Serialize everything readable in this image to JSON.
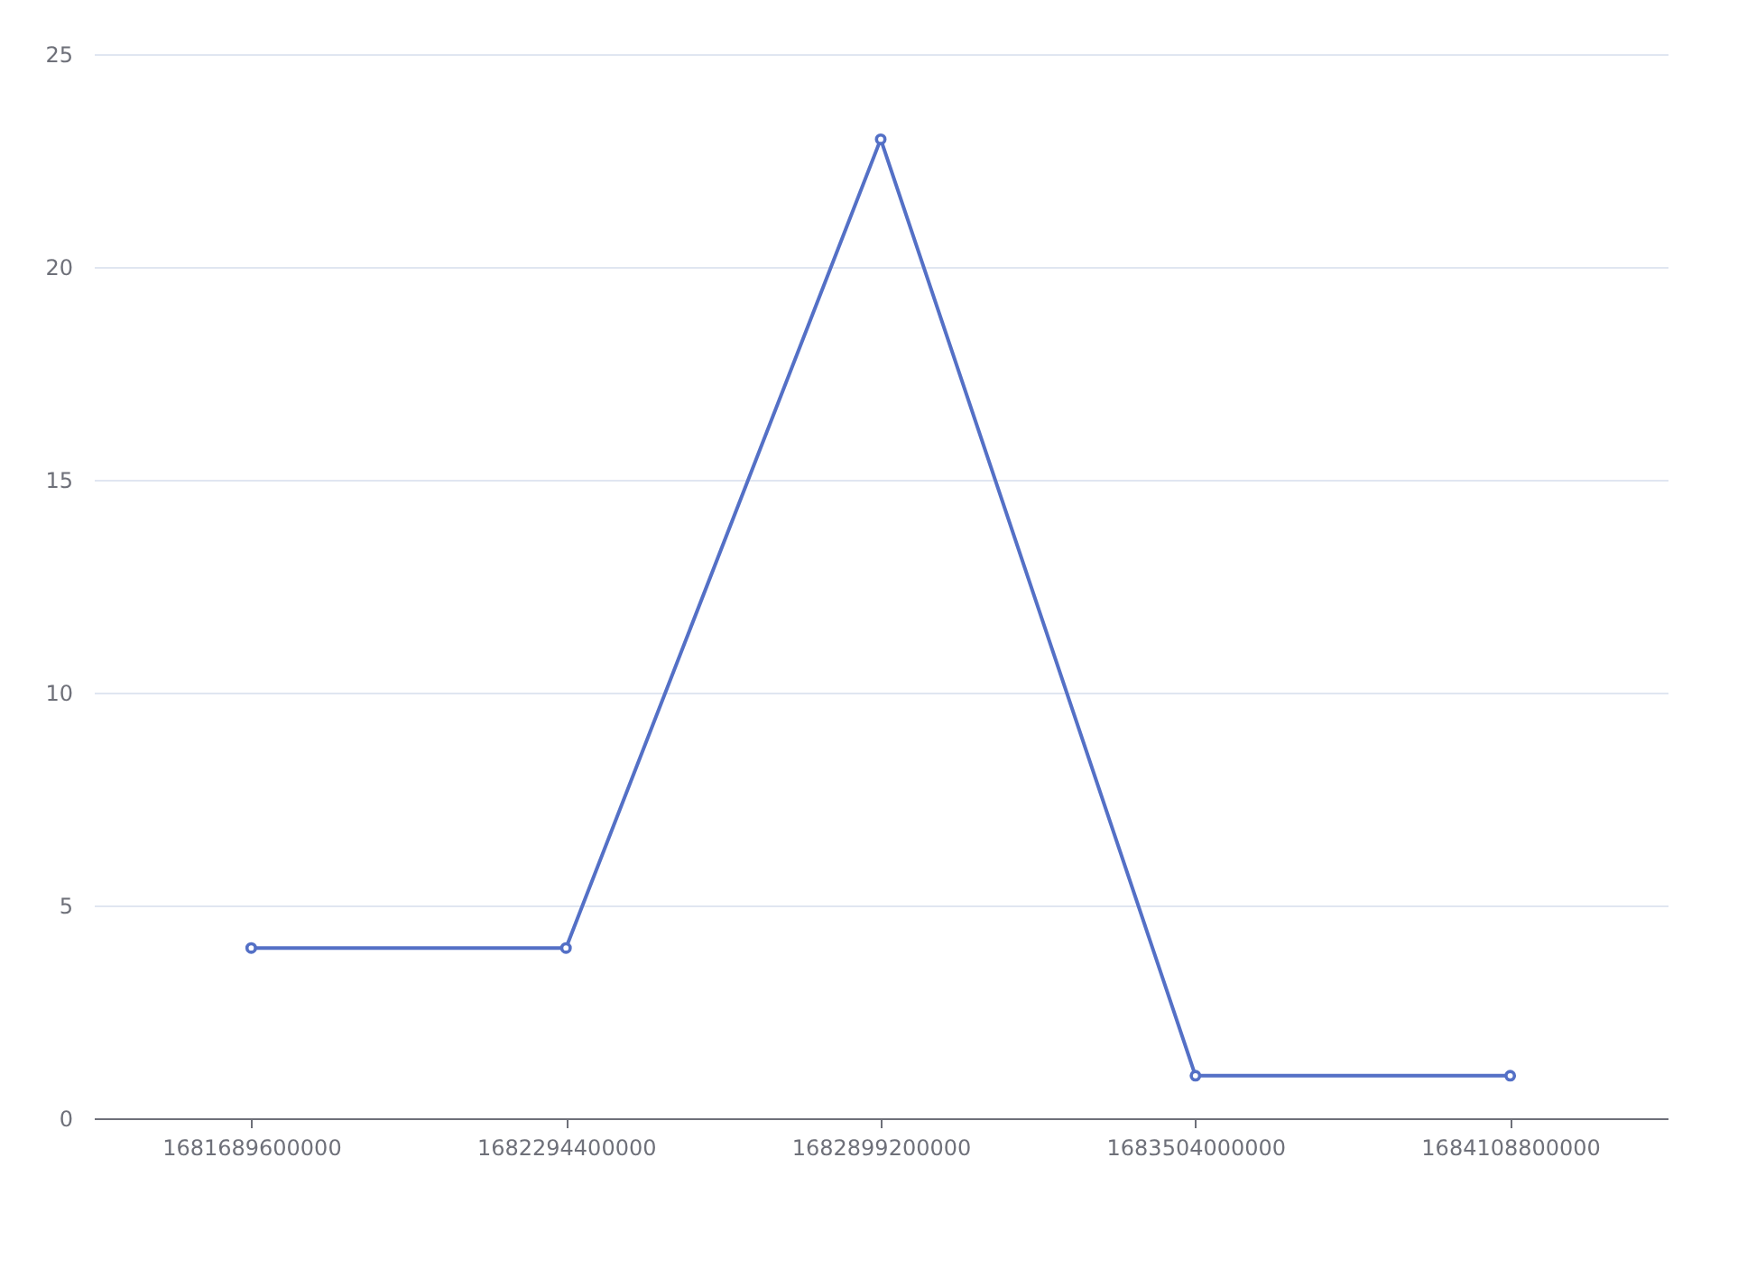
{
  "chart_data": {
    "type": "line",
    "categories": [
      "1681689600000",
      "1682294400000",
      "1682899200000",
      "1683504000000",
      "1684108800000"
    ],
    "series": [
      {
        "color": "#5470c6",
        "values": [
          4,
          4,
          23,
          1,
          1
        ]
      }
    ],
    "ylim": [
      0,
      25
    ],
    "yticks": [
      0,
      5,
      10,
      15,
      20,
      25
    ],
    "grid": "y",
    "marker": "circle",
    "line_style": "solid"
  }
}
